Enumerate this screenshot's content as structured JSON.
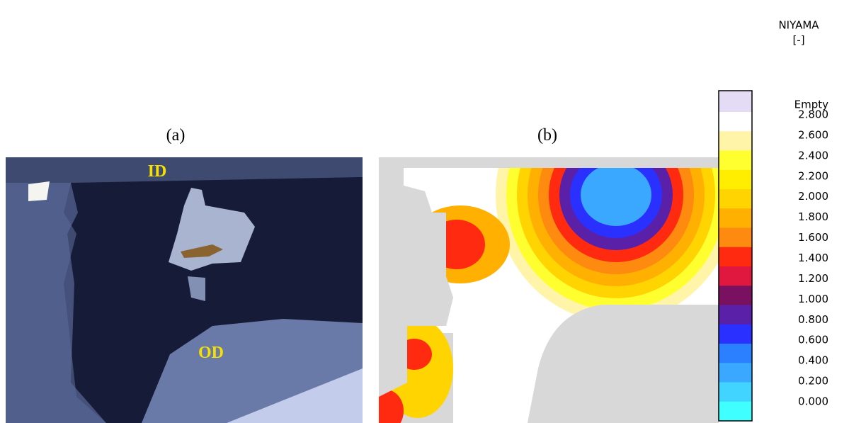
{
  "panels": {
    "a": {
      "label": "(a)",
      "top_text": "ID",
      "bottom_text": "OD"
    },
    "b": {
      "label": "(b)"
    }
  },
  "legend": {
    "title": "NIYAMA",
    "unit": "[-]",
    "empty": "Empty",
    "labels": [
      "2.800",
      "2.600",
      "2.400",
      "2.200",
      "2.000",
      "1.800",
      "1.600",
      "1.400",
      "1.200",
      "1.000",
      "0.800",
      "0.600",
      "0.400",
      "0.200",
      "0.000"
    ]
  }
}
